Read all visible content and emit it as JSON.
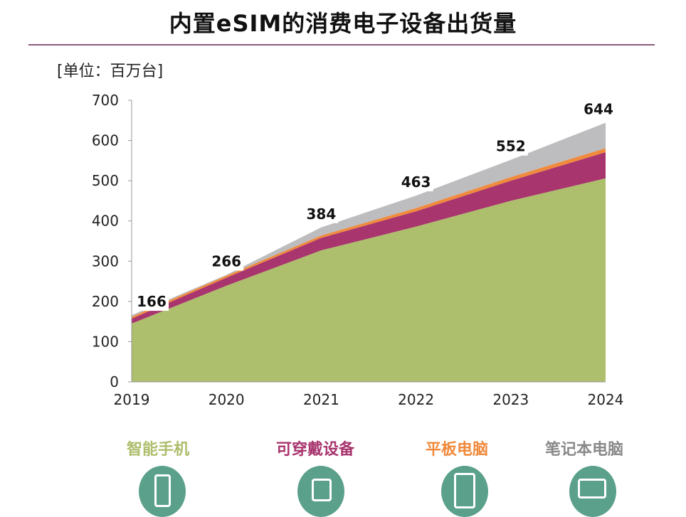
{
  "title": "内置eSIM的消费电子设备出货量",
  "unit": "[单位：百万台]",
  "chart_data": {
    "type": "area",
    "stacked": true,
    "categories": [
      "2019",
      "2020",
      "2021",
      "2022",
      "2023",
      "2024"
    ],
    "series": [
      {
        "name": "智能手机",
        "color": "#adbe6c",
        "values": [
          145,
          239,
          327,
          386,
          450,
          506
        ]
      },
      {
        "name": "可穿戴设备",
        "color": "#a8356e",
        "values": [
          12,
          20,
          31,
          38,
          50,
          65
        ]
      },
      {
        "name": "平板电脑",
        "color": "#f08a3c",
        "values": [
          5,
          5,
          6,
          8,
          9,
          10
        ]
      },
      {
        "name": "笔记本电脑",
        "color": "#bdbcbe",
        "values": [
          4,
          2,
          20,
          31,
          43,
          63
        ]
      }
    ],
    "totals": [
      "166",
      "266",
      "384",
      "463",
      "552",
      "644"
    ],
    "ylim": [
      0,
      700
    ],
    "yticks": [
      "0",
      "100",
      "200",
      "300",
      "400",
      "500",
      "600",
      "700"
    ],
    "grid": false,
    "legend": "bottom"
  },
  "legend_icons": [
    "smartphone-icon",
    "smartwatch-icon",
    "tablet-icon",
    "laptop-icon"
  ]
}
